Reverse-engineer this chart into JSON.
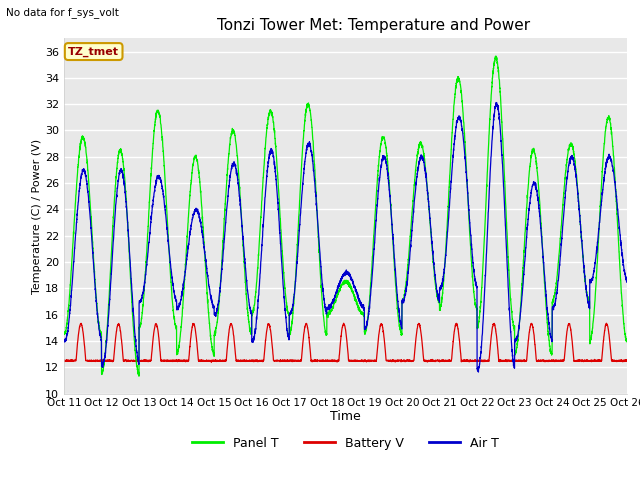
{
  "title": "Tonzi Tower Met: Temperature and Power",
  "xlabel": "Time",
  "ylabel": "Temperature (C) / Power (V)",
  "top_left_text": "No data for f_sys_volt",
  "annotation_box": "TZ_tmet",
  "ylim": [
    10,
    37
  ],
  "yticks": [
    10,
    12,
    14,
    16,
    18,
    20,
    22,
    24,
    26,
    28,
    30,
    32,
    34,
    36
  ],
  "xtick_labels": [
    "Oct 11",
    "Oct 12",
    "Oct 13",
    "Oct 14",
    "Oct 15",
    "Oct 16",
    "Oct 17",
    "Oct 18",
    "Oct 19",
    "Oct 20",
    "Oct 21",
    "Oct 22",
    "Oct 23",
    "Oct 24",
    "Oct 25",
    "Oct 26"
  ],
  "fig_bg_color": "#ffffff",
  "plot_bg_color": "#e8e8e8",
  "grid_color": "#ffffff",
  "legend_entries": [
    "Panel T",
    "Battery V",
    "Air T"
  ],
  "legend_colors": [
    "#00ee00",
    "#dd0000",
    "#0000cc"
  ],
  "line_colors": {
    "panel": "#00ee00",
    "battery": "#dd0000",
    "air": "#0000cc"
  },
  "num_days": 15,
  "panel_peaks": [
    29.5,
    28.5,
    31.5,
    28.0,
    30.0,
    31.5,
    32.0,
    18.5,
    29.5,
    29.0,
    34.0,
    35.5,
    28.5,
    29.0,
    31.0
  ],
  "panel_troughs": [
    14.5,
    11.5,
    15.0,
    13.0,
    14.5,
    16.0,
    14.5,
    16.0,
    14.5,
    17.0,
    16.5,
    15.0,
    13.0,
    17.0,
    14.0
  ],
  "air_peaks": [
    27.0,
    27.0,
    26.5,
    24.0,
    27.5,
    28.5,
    29.0,
    19.2,
    28.0,
    28.0,
    31.0,
    32.0,
    26.0,
    28.0,
    28.0
  ],
  "air_troughs": [
    14.0,
    12.2,
    17.0,
    16.5,
    16.0,
    14.0,
    16.0,
    16.5,
    15.0,
    17.0,
    18.0,
    11.8,
    14.0,
    16.5,
    18.5
  ],
  "battery_baseline": 12.5,
  "battery_peak": 15.3
}
